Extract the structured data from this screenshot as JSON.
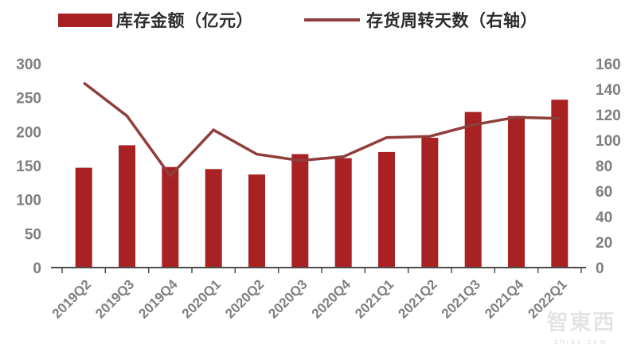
{
  "legend": {
    "items": [
      {
        "label": "库存金额（亿元）",
        "swatch": "bar-swatch"
      },
      {
        "label": "存货周转天数（右轴）",
        "swatch": "line-swatch"
      }
    ]
  },
  "colors": {
    "bar": "#a82123",
    "line": "#8f3e3c",
    "axis": "#4d4d4d",
    "tick_label": "#7f7f7f",
    "legend_text": "#2b2b2b",
    "watermark": "#e4e4e4"
  },
  "watermark": {
    "logo": "智東西",
    "domain": "zhidx.com"
  },
  "chart_data": {
    "type": "bar",
    "subtype": "combo-bar-line",
    "title": "",
    "categories": [
      "2019Q2",
      "2019Q3",
      "2019Q4",
      "2020Q1",
      "2020Q2",
      "2020Q3",
      "2020Q4",
      "2021Q1",
      "2021Q2",
      "2021Q3",
      "2021Q4",
      "2022Q1"
    ],
    "series": [
      {
        "name": "库存金额（亿元）",
        "type": "bar",
        "axis": "left",
        "values": [
          147,
          180,
          148,
          145,
          137,
          167,
          161,
          170,
          191,
          229,
          223,
          247
        ]
      },
      {
        "name": "存货周转天数（右轴）",
        "type": "line",
        "axis": "right",
        "values": [
          145,
          119,
          72,
          108,
          89,
          84,
          87,
          102,
          103,
          112,
          118,
          117
        ]
      }
    ],
    "left_axis": {
      "min": 0,
      "max": 300,
      "ticks": [
        0,
        50,
        100,
        150,
        200,
        250,
        300
      ]
    },
    "right_axis": {
      "min": 0,
      "max": 160,
      "ticks": [
        0,
        20,
        40,
        60,
        80,
        100,
        120,
        140,
        160
      ]
    },
    "xlabel": "",
    "ylabel": "",
    "grid": false,
    "legend_position": "top",
    "x_tick_rotation": -45
  }
}
